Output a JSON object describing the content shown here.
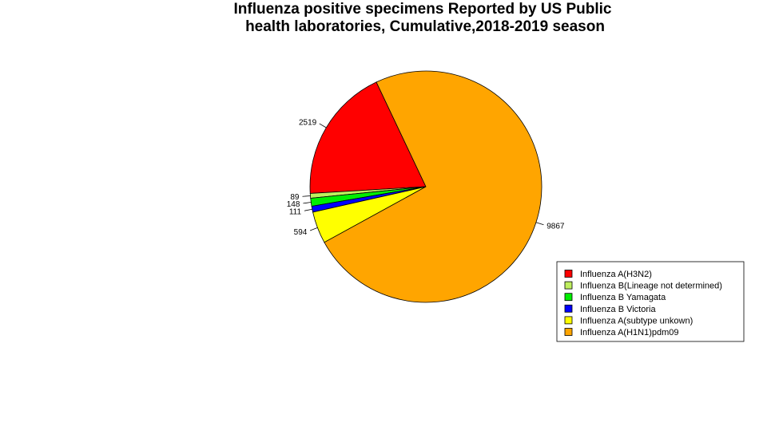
{
  "chart_data": {
    "type": "pie",
    "title": "Influenza positive specimens Reported by US Public health laboratories, Cumulative,2018-2019 season",
    "title_lines": [
      "Influenza positive specimens Reported by US Public",
      "health laboratories, Cumulative,2018-2019 season"
    ],
    "slices": [
      {
        "name": "Influenza A(H3N2)",
        "value": 2519,
        "label": "2519",
        "color": "#FF0000"
      },
      {
        "name": "Influenza B(Lineage not determined)",
        "value": 89,
        "label": "89",
        "color": "#BFEF5F"
      },
      {
        "name": "Influenza B Yamagata",
        "value": 148,
        "label": "148",
        "color": "#00EE00"
      },
      {
        "name": "Influenza B Victoria",
        "value": 111,
        "label": "111",
        "color": "#0000FF"
      },
      {
        "name": "Influenza A(subtype unkown)",
        "value": 594,
        "label": "594",
        "color": "#FFFF00"
      },
      {
        "name": "Influenza A(H1N1)pdm09",
        "value": 9867,
        "label": "9867",
        "color": "#FFA500"
      }
    ],
    "legend_position": "bottom-right"
  }
}
